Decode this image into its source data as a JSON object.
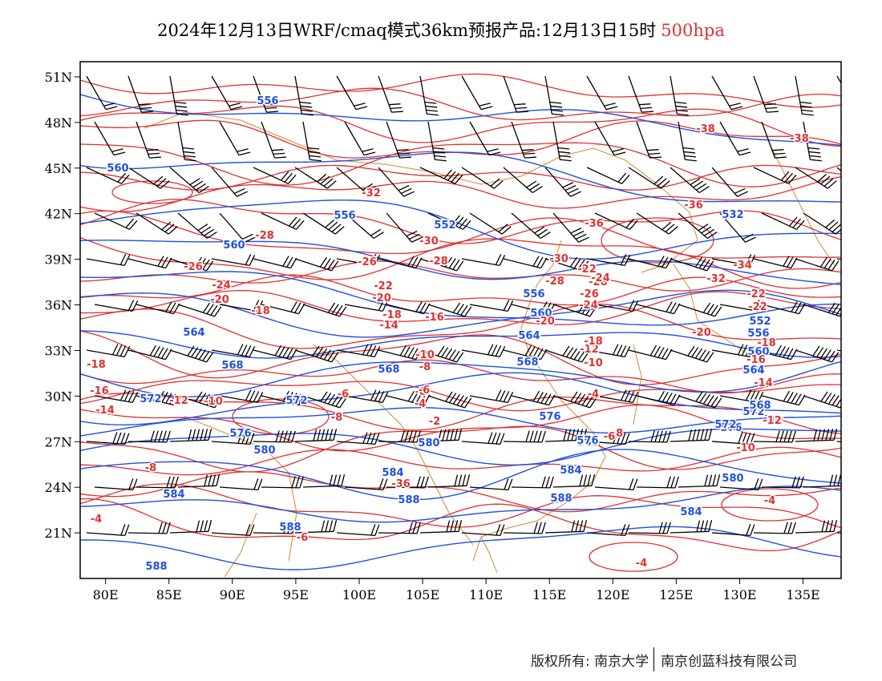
{
  "title": {
    "main": "2024年12月13日WRF/cmaq模式36km预报产品:12月13日15时",
    "level": "500hpa"
  },
  "map": {
    "lon_range": [
      78,
      138
    ],
    "lat_range": [
      18,
      52
    ],
    "lon_ticks": [
      "80E",
      "85E",
      "90E",
      "95E",
      "100E",
      "105E",
      "110E",
      "115E",
      "120E",
      "125E",
      "130E",
      "135E"
    ],
    "lat_ticks": [
      "21N",
      "24N",
      "27N",
      "30N",
      "33N",
      "36N",
      "39N",
      "42N",
      "45N",
      "48N",
      "51N"
    ],
    "colors": {
      "height_contour": "#2050e0",
      "temperature_contour": "#e03030",
      "coastline": "#d08a30",
      "wind_barb": "#000000"
    },
    "height_labels": [
      "556",
      "560",
      "556",
      "552",
      "560",
      "564",
      "568",
      "568",
      "572",
      "572",
      "576",
      "576",
      "580",
      "580",
      "584",
      "588",
      "584",
      "588",
      "588",
      "588",
      "556",
      "560",
      "564",
      "568",
      "572",
      "576",
      "580",
      "584",
      "588",
      "532",
      "552",
      "556",
      "560",
      "564",
      "568",
      "572",
      "576",
      "580",
      "584",
      "588"
    ],
    "temperature_labels": [
      "-36",
      "-38",
      "-38",
      "-36",
      "-32",
      "-30",
      "-28",
      "-28",
      "-26",
      "-26",
      "-24",
      "-22",
      "-20",
      "-20",
      "-18",
      "-18",
      "-16",
      "-14",
      "-12",
      "-10",
      "-10",
      "-8",
      "-8",
      "-6",
      "-4",
      "-4",
      "-2",
      "-36",
      "-34",
      "-32",
      "-30",
      "-28",
      "-28",
      "-26",
      "-24",
      "-22",
      "-22",
      "-20",
      "-18",
      "-16",
      "-14",
      "-12",
      "-10",
      "-8",
      "-6",
      "-4",
      "-4",
      "-4",
      "-6",
      "-8",
      "-12",
      "-14",
      "-16",
      "-18",
      "-20",
      "-22",
      "-24",
      "-18",
      "-12",
      "-10",
      "-8",
      "-6"
    ]
  },
  "footer": {
    "left": "版权所有: 南京大学",
    "right": "南京创蓝科技有限公司"
  }
}
